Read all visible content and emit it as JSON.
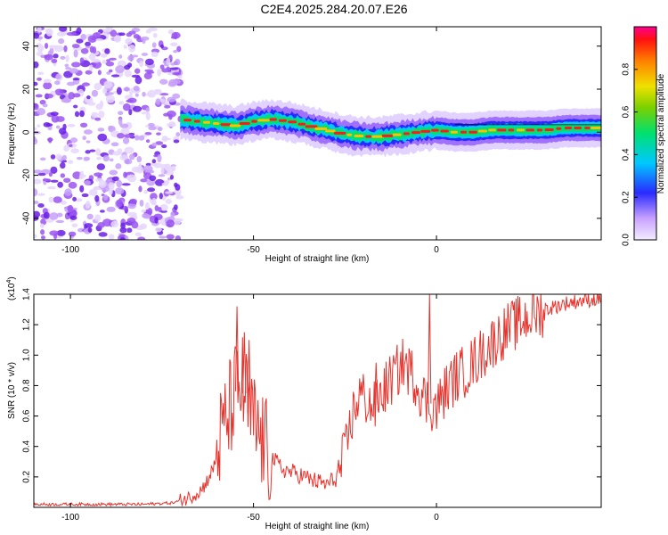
{
  "title": "C2E4.2025.284.20.07.E26",
  "colors": {
    "snr_line": "#e8322c",
    "spectrogram_noise": "#7b2cf0",
    "axis": "#000000"
  },
  "chart_data": [
    {
      "type": "heatmap",
      "name": "spectrogram",
      "xlabel": "Height of straight line (km)",
      "ylabel": "Frequency (Hz)",
      "xlim": [
        -110,
        45
      ],
      "ylim": [
        -50,
        49
      ],
      "xticks": [
        -100,
        -50,
        0
      ],
      "xtick_labels": [
        "-100",
        "-50",
        "0"
      ],
      "yticks": [
        -40,
        -20,
        0,
        20,
        40
      ],
      "ytick_labels": [
        "-40",
        "-20",
        "0",
        "20",
        "40"
      ],
      "noise_region": {
        "x_range": [
          -110,
          -70
        ],
        "y_range": [
          -50,
          49
        ]
      },
      "ridge": [
        {
          "x": -70,
          "y": 6
        },
        {
          "x": -65,
          "y": 5
        },
        {
          "x": -60,
          "y": 4
        },
        {
          "x": -55,
          "y": 3
        },
        {
          "x": -50,
          "y": 5
        },
        {
          "x": -45,
          "y": 6
        },
        {
          "x": -40,
          "y": 5
        },
        {
          "x": -35,
          "y": 3
        },
        {
          "x": -30,
          "y": 1
        },
        {
          "x": -25,
          "y": -1
        },
        {
          "x": -20,
          "y": -2
        },
        {
          "x": -15,
          "y": -2
        },
        {
          "x": -10,
          "y": -1
        },
        {
          "x": -5,
          "y": 0
        },
        {
          "x": 0,
          "y": 1
        },
        {
          "x": 5,
          "y": 0
        },
        {
          "x": 10,
          "y": 0
        },
        {
          "x": 15,
          "y": 1
        },
        {
          "x": 20,
          "y": 1
        },
        {
          "x": 25,
          "y": 1
        },
        {
          "x": 30,
          "y": 1
        },
        {
          "x": 35,
          "y": 2
        },
        {
          "x": 40,
          "y": 2
        },
        {
          "x": 45,
          "y": 2
        }
      ],
      "colorbar": {
        "label": "Normalized spectral amplitude",
        "range": [
          0,
          1
        ],
        "ticks": [
          0.0,
          0.2,
          0.4,
          0.6,
          0.8
        ],
        "tick_labels": [
          "0.0",
          "0.2",
          "0.4",
          "0.6",
          "0.8"
        ]
      }
    },
    {
      "type": "line",
      "name": "snr",
      "xlabel": "Height of straight line (km)",
      "ylabel": "SNR (10 * v/v)",
      "scale_label": "(x10",
      "scale_exponent": "4",
      "xlim": [
        -110,
        45
      ],
      "ylim": [
        0,
        1.4
      ],
      "xticks": [
        -100,
        -50,
        0
      ],
      "xtick_labels": [
        "-100",
        "-50",
        "0"
      ],
      "yticks": [
        0.2,
        0.4,
        0.6,
        0.8,
        1.0,
        1.2,
        1.4
      ],
      "ytick_labels": [
        "0.2",
        "0.4",
        "0.6",
        "0.8",
        "1.0",
        "1.2",
        "1.4"
      ],
      "series": [
        {
          "name": "SNR",
          "points": [
            [
              -110,
              0.02
            ],
            [
              -95,
              0.02
            ],
            [
              -80,
              0.02
            ],
            [
              -72,
              0.03
            ],
            [
              -68,
              0.06
            ],
            [
              -64,
              0.12
            ],
            [
              -61,
              0.25
            ],
            [
              -59,
              0.45
            ],
            [
              -57,
              0.6
            ],
            [
              -55,
              0.75
            ],
            [
              -53,
              0.8
            ],
            [
              -51,
              0.6
            ],
            [
              -49,
              0.5
            ],
            [
              -46,
              0.35
            ],
            [
              -42,
              0.25
            ],
            [
              -38,
              0.22
            ],
            [
              -34,
              0.18
            ],
            [
              -30,
              0.15
            ],
            [
              -27,
              0.2
            ],
            [
              -25,
              0.35
            ],
            [
              -23,
              0.6
            ],
            [
              -21,
              0.75
            ],
            [
              -19,
              0.7
            ],
            [
              -17,
              0.65
            ],
            [
              -15,
              0.75
            ],
            [
              -12,
              0.85
            ],
            [
              -9,
              0.95
            ],
            [
              -6,
              0.85
            ],
            [
              -3,
              0.7
            ],
            [
              0,
              0.65
            ],
            [
              2,
              0.75
            ],
            [
              5,
              0.85
            ],
            [
              8,
              0.9
            ],
            [
              12,
              1.0
            ],
            [
              16,
              1.1
            ],
            [
              20,
              1.18
            ],
            [
              25,
              1.25
            ],
            [
              30,
              1.3
            ],
            [
              35,
              1.34
            ],
            [
              40,
              1.36
            ],
            [
              45,
              1.37
            ]
          ],
          "spikes": [
            [
              -54.5,
              1.32
            ],
            [
              -52.5,
              1.15
            ],
            [
              -51.2,
              1.1
            ],
            [
              -1.9,
              1.4
            ],
            [
              -16.5,
              0.95
            ]
          ]
        }
      ]
    }
  ]
}
